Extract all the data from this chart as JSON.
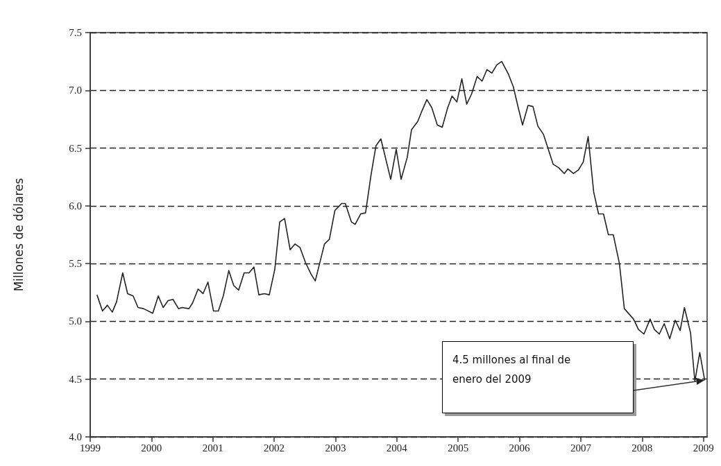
{
  "chart_data": {
    "type": "line",
    "ylabel": "Millones de dólares",
    "x": [
      1999.11,
      1999.2,
      1999.28,
      1999.36,
      1999.43,
      1999.53,
      1999.61,
      1999.7,
      1999.78,
      1999.87,
      2000.02,
      2000.11,
      2000.19,
      2000.27,
      2000.35,
      2000.44,
      2000.5,
      2000.61,
      2000.67,
      2000.76,
      2000.84,
      2000.92,
      2001.01,
      2001.09,
      2001.17,
      2001.26,
      2001.34,
      2001.42,
      2001.51,
      2001.59,
      2001.67,
      2001.75,
      2001.84,
      2001.92,
      2002.01,
      2002.09,
      2002.17,
      2002.26,
      2002.34,
      2002.42,
      2002.51,
      2002.6,
      2002.67,
      2002.82,
      2002.9,
      2002.99,
      2003.1,
      2003.16,
      2003.26,
      2003.32,
      2003.41,
      2003.49,
      2003.58,
      2003.66,
      2003.74,
      2003.9,
      2003.99,
      2004.07,
      2004.17,
      2004.24,
      2004.34,
      2004.4,
      2004.49,
      2004.57,
      2004.66,
      2004.74,
      2004.83,
      2004.9,
      2004.98,
      2005.06,
      2005.14,
      2005.22,
      2005.31,
      2005.39,
      2005.47,
      2005.55,
      2005.63,
      2005.71,
      2005.82,
      2005.9,
      2005.98,
      2006.05,
      2006.14,
      2006.22,
      2006.3,
      2006.39,
      2006.47,
      2006.55,
      2006.64,
      2006.73,
      2006.79,
      2006.88,
      2006.96,
      2007.04,
      2007.12,
      2007.21,
      2007.29,
      2007.37,
      2007.45,
      2007.53,
      2007.63,
      2007.71,
      2007.86,
      2007.94,
      2008.03,
      2008.13,
      2008.2,
      2008.28,
      2008.36,
      2008.45,
      2008.54,
      2008.62,
      2008.69,
      2008.79,
      2008.86,
      2008.94,
      2009.02
    ],
    "series": [
      {
        "color": "#222222",
        "values": [
          5.23,
          5.09,
          5.14,
          5.08,
          5.17,
          5.42,
          5.24,
          5.22,
          5.12,
          5.11,
          5.07,
          5.22,
          5.12,
          5.18,
          5.19,
          5.11,
          5.12,
          5.11,
          5.16,
          5.28,
          5.24,
          5.34,
          5.09,
          5.09,
          5.22,
          5.44,
          5.31,
          5.27,
          5.42,
          5.42,
          5.47,
          5.23,
          5.24,
          5.23,
          5.45,
          5.86,
          5.89,
          5.62,
          5.67,
          5.64,
          5.51,
          5.41,
          5.35,
          5.67,
          5.71,
          5.96,
          6.02,
          6.02,
          5.86,
          5.84,
          5.93,
          5.94,
          6.27,
          6.52,
          6.58,
          6.23,
          6.49,
          6.23,
          6.42,
          6.66,
          6.73,
          6.81,
          6.92,
          6.85,
          6.7,
          6.68,
          6.85,
          6.95,
          6.9,
          7.1,
          6.88,
          6.97,
          7.12,
          7.08,
          7.18,
          7.15,
          7.22,
          7.25,
          7.14,
          7.03,
          6.85,
          6.7,
          6.87,
          6.86,
          6.69,
          6.62,
          6.49,
          6.36,
          6.33,
          6.28,
          6.32,
          6.28,
          6.31,
          6.38,
          6.6,
          6.12,
          5.93,
          5.93,
          5.75,
          5.75,
          5.5,
          5.11,
          5.02,
          4.93,
          4.89,
          5.02,
          4.93,
          4.89,
          4.98,
          4.85,
          5.01,
          4.92,
          5.12,
          4.9,
          4.48,
          4.73,
          4.49
        ]
      }
    ],
    "xlim": [
      1999,
      2009.06
    ],
    "xticks": [
      1999,
      2000,
      2001,
      2002,
      2003,
      2004,
      2005,
      2006,
      2007,
      2008,
      2009
    ],
    "ylim": [
      4,
      7.5
    ],
    "yticks": [
      "4.0",
      4.5,
      "5.0",
      5.5,
      "6.0",
      6.5,
      "7.0",
      7.5
    ],
    "grid": "y",
    "line_style": "solid",
    "marker": "none",
    "annotations": [
      "4.5 millones al final de enero del 2009"
    ]
  }
}
